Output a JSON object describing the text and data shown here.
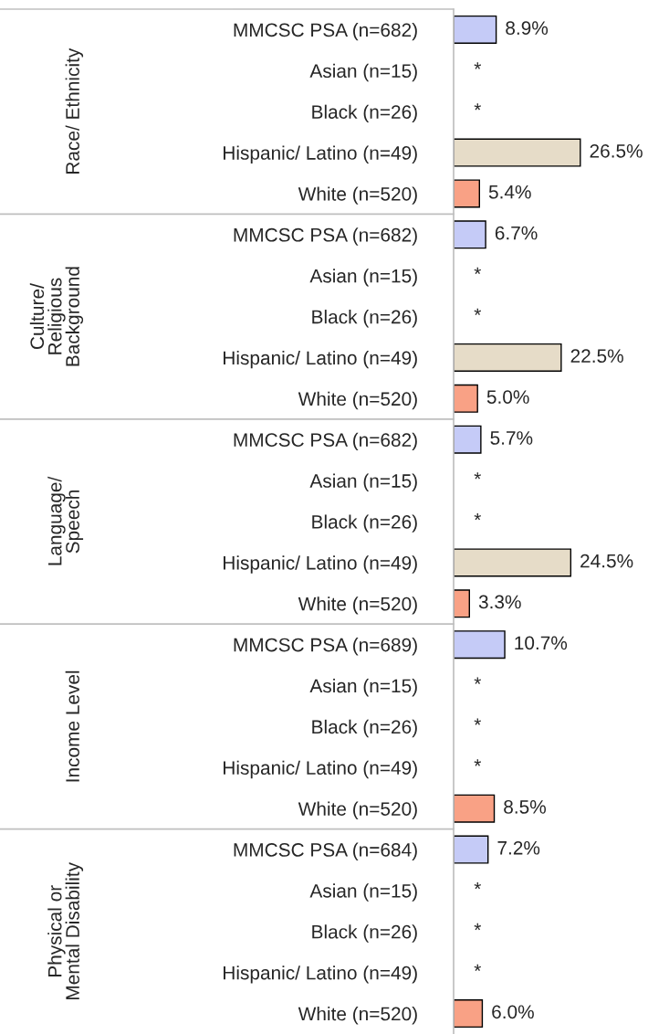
{
  "chart_data": [
    {
      "type": "bar",
      "orientation": "horizontal",
      "ylabel": "Race/ Ethnicity",
      "categories": [
        "MMCSC PSA (n=682)",
        "Asian (n=15)",
        "Black (n=26)",
        "Hispanic/ Latino (n=49)",
        "White (n=520)"
      ],
      "values": [
        8.9,
        null,
        null,
        26.5,
        5.4
      ],
      "value_labels": [
        "8.9%",
        "*",
        "*",
        "26.5%",
        "5.4%"
      ],
      "colors": [
        "#c5cbf7",
        "#c5cbf7",
        "#c5cbf7",
        "#e6dcc8",
        "#f9a185"
      ],
      "tick_labels": "y",
      "grid": false,
      "legend": false
    },
    {
      "type": "bar",
      "orientation": "horizontal",
      "ylabel": "Culture/\nReligious\nBackground",
      "categories": [
        "MMCSC PSA (n=682)",
        "Asian (n=15)",
        "Black (n=26)",
        "Hispanic/ Latino (n=49)",
        "White (n=520)"
      ],
      "values": [
        6.7,
        null,
        null,
        22.5,
        5.0
      ],
      "value_labels": [
        "6.7%",
        "*",
        "*",
        "22.5%",
        "5.0%"
      ],
      "colors": [
        "#c5cbf7",
        "#c5cbf7",
        "#c5cbf7",
        "#e6dcc8",
        "#f9a185"
      ],
      "tick_labels": "y",
      "grid": false,
      "legend": false
    },
    {
      "type": "bar",
      "orientation": "horizontal",
      "ylabel": "Language/\nSpeech",
      "categories": [
        "MMCSC PSA (n=682)",
        "Asian (n=15)",
        "Black (n=26)",
        "Hispanic/ Latino (n=49)",
        "White (n=520)"
      ],
      "values": [
        5.7,
        null,
        null,
        24.5,
        3.3
      ],
      "value_labels": [
        "5.7%",
        "*",
        "*",
        "24.5%",
        "3.3%"
      ],
      "colors": [
        "#c5cbf7",
        "#c5cbf7",
        "#c5cbf7",
        "#e6dcc8",
        "#f9a185"
      ],
      "tick_labels": "y",
      "grid": false,
      "legend": false
    },
    {
      "type": "bar",
      "orientation": "horizontal",
      "ylabel": "Income Level",
      "categories": [
        "MMCSC PSA (n=689)",
        "Asian (n=15)",
        "Black (n=26)",
        "Hispanic/ Latino (n=49)",
        "White (n=520)"
      ],
      "values": [
        10.7,
        null,
        null,
        null,
        8.5
      ],
      "value_labels": [
        "10.7%",
        "*",
        "*",
        "*",
        "8.5%"
      ],
      "colors": [
        "#c5cbf7",
        "#c5cbf7",
        "#c5cbf7",
        "#e6dcc8",
        "#f9a185"
      ],
      "tick_labels": "y",
      "grid": false,
      "legend": false
    },
    {
      "type": "bar",
      "orientation": "horizontal",
      "ylabel": "Physical or\nMental Disability",
      "categories": [
        "MMCSC PSA (n=684)",
        "Asian (n=15)",
        "Black (n=26)",
        "Hispanic/ Latino (n=49)",
        "White (n=520)"
      ],
      "values": [
        7.2,
        null,
        null,
        null,
        6.0
      ],
      "value_labels": [
        "7.2%",
        "*",
        "*",
        "*",
        "6.0%"
      ],
      "colors": [
        "#c5cbf7",
        "#c5cbf7",
        "#c5cbf7",
        "#e6dcc8",
        "#f9a185"
      ],
      "tick_labels": "y",
      "grid": false,
      "legend": false
    }
  ]
}
